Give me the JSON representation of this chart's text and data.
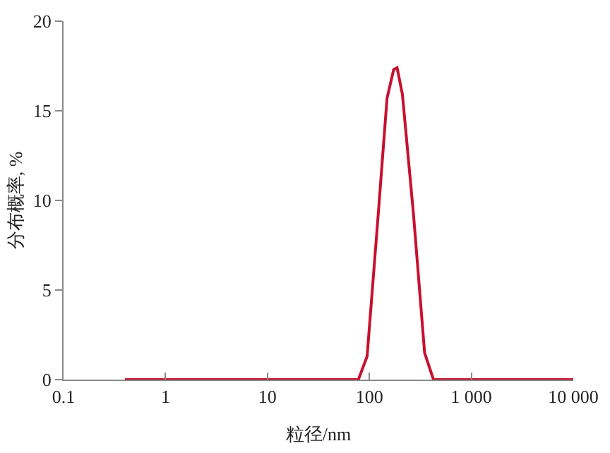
{
  "chart_data": {
    "type": "line",
    "xlabel": "粒径/nm",
    "ylabel": "分布概率, %",
    "log": "x",
    "xlim": [
      0.1,
      10000
    ],
    "xticks": [
      0.1,
      1,
      10,
      100,
      {
        "value": 1000,
        "label": "1 000"
      },
      {
        "value": 10000,
        "label": "10 000"
      }
    ],
    "ylim": [
      0,
      20
    ],
    "yticks": [
      0,
      5,
      10,
      15,
      20
    ],
    "legend": false,
    "marker": "none",
    "line_style": "solid",
    "series": [
      {
        "color": "#c8102e",
        "x": [
          0.4,
          1,
          10,
          78,
          95,
          122,
          149,
          173,
          187,
          211,
          271,
          348,
          425,
          1000,
          10000
        ],
        "values": [
          0,
          0,
          0,
          0,
          1.3,
          9.2,
          15.7,
          17.3,
          17.4,
          15.9,
          9.2,
          1.5,
          0,
          0,
          0
        ]
      }
    ]
  }
}
